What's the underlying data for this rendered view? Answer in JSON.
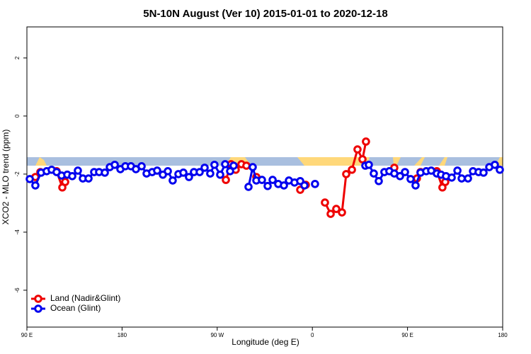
{
  "chart_data": {
    "type": "line",
    "title": "5N-10N August (Ver 10)   2015-01-01 to 2020-12-18",
    "x_label": "Longitude (deg E)",
    "y_label": "XCO2 - MLO trend (ppm)",
    "xlim": [
      90,
      540
    ],
    "ylim": [
      -7.27,
      3.07
    ],
    "xticks": [
      {
        "value": 90,
        "label": "90 E"
      },
      180,
      {
        "value": 270,
        "label": "90 W"
      },
      {
        "value": 360,
        "label": "0"
      },
      {
        "value": 450,
        "label": "90 E"
      },
      {
        "value": 540,
        "label": "180"
      }
    ],
    "yticks": [
      2,
      0,
      -2,
      -4,
      -6
    ],
    "legend": "bottom-left",
    "series": [
      {
        "name": "Land (Nadir&Glint)",
        "color": "#ee0000",
        "x": [
          98.0,
          102.7,
          118.1,
          123.5,
          126.2,
          278.2,
          283.1,
          287.5,
          292.9,
          297.6,
          307.0,
          348.5,
          353.8,
          371.9,
          377.3,
          382.6,
          388.0,
          392.0,
          397.4,
          402.7,
          407.4,
          410.7,
          437.5,
          458.9,
          462.3,
          477.7,
          483.0,
          485.7
        ],
        "values": [
          -2.1,
          -1.93,
          -1.9,
          -2.46,
          -2.27,
          -2.2,
          -1.66,
          -1.85,
          -1.66,
          -1.71,
          -2.1,
          -2.54,
          -2.37,
          -2.98,
          -3.37,
          -3.2,
          -3.32,
          -2.0,
          -1.85,
          -1.15,
          -1.49,
          -0.88,
          -1.78,
          -2.15,
          -1.93,
          -1.9,
          -2.46,
          -2.27
        ]
      },
      {
        "name": "Ocean (Glint)",
        "color": "#0000ee",
        "x": [
          92.7,
          98.0,
          103.4,
          108.7,
          113.4,
          118.1,
          122.8,
          128.2,
          132.9,
          138.2,
          142.9,
          148.3,
          153.6,
          158.3,
          163.7,
          168.4,
          173.1,
          178.4,
          183.1,
          188.4,
          193.1,
          198.5,
          203.2,
          208.5,
          213.2,
          218.6,
          223.3,
          227.9,
          233.3,
          238.0,
          243.3,
          248.0,
          253.4,
          258.1,
          263.4,
          267.4,
          272.8,
          277.5,
          282.2,
          285.5,
          299.6,
          303.6,
          307.0,
          312.3,
          317.7,
          322.4,
          327.7,
          333.1,
          337.8,
          343.1,
          348.5,
          352.5,
          362.5,
          410.1,
          413.4,
          418.1,
          422.8,
          428.1,
          432.8,
          437.5,
          442.9,
          447.6,
          452.9,
          457.6,
          462.3,
          467.7,
          472.4,
          477.7,
          481.7,
          486.4,
          491.8,
          497.2,
          501.2,
          507.2,
          511.9,
          517.2,
          521.9,
          527.3,
          532.6,
          537.3
        ],
        "values": [
          -2.17,
          -2.39,
          -1.95,
          -1.9,
          -1.85,
          -1.93,
          -2.05,
          -2.02,
          -2.07,
          -1.88,
          -2.15,
          -2.15,
          -1.93,
          -1.93,
          -1.95,
          -1.76,
          -1.68,
          -1.83,
          -1.73,
          -1.73,
          -1.83,
          -1.73,
          -1.98,
          -1.93,
          -1.88,
          -2.02,
          -1.9,
          -2.22,
          -2.0,
          -1.95,
          -2.1,
          -1.93,
          -1.93,
          -1.78,
          -1.98,
          -1.68,
          -2.02,
          -1.66,
          -1.9,
          -1.71,
          -2.44,
          -1.76,
          -2.22,
          -2.2,
          -2.41,
          -2.2,
          -2.34,
          -2.39,
          -2.22,
          -2.29,
          -2.24,
          -2.39,
          -2.34,
          -1.71,
          -1.68,
          -1.98,
          -2.24,
          -1.93,
          -1.9,
          -1.98,
          -2.07,
          -1.93,
          -2.17,
          -2.39,
          -1.95,
          -1.9,
          -1.88,
          -1.98,
          -2.02,
          -2.07,
          -2.12,
          -1.88,
          -2.15,
          -2.15,
          -1.9,
          -1.93,
          -1.95,
          -1.76,
          -1.68,
          -1.85
        ]
      }
    ]
  }
}
